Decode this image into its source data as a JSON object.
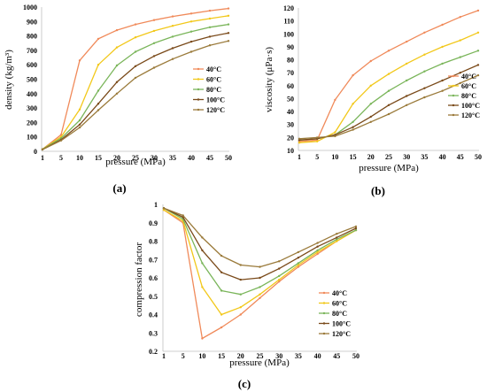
{
  "chart_data": [
    {
      "type": "line",
      "panel_label": "(a)",
      "xlabel": "pressure (MPa)",
      "ylabel": "density (kg/m³)",
      "x": [
        1,
        5,
        10,
        15,
        20,
        25,
        30,
        35,
        40,
        45,
        50
      ],
      "xticks": [
        "1",
        "5",
        "10",
        "15",
        "20",
        "25",
        "30",
        "35",
        "40",
        "45",
        "50"
      ],
      "ylim": [
        0,
        1000
      ],
      "yticks": [
        "0",
        "100",
        "200",
        "300",
        "400",
        "500",
        "600",
        "700",
        "800",
        "900",
        "1000"
      ],
      "grid": false,
      "legend_position": "right",
      "series": [
        {
          "name": "40°C",
          "color": "#F08A5A",
          "values": [
            15,
            115,
            630,
            780,
            840,
            880,
            910,
            935,
            955,
            975,
            990
          ]
        },
        {
          "name": "60°C",
          "color": "#F2C81A",
          "values": [
            15,
            100,
            290,
            600,
            720,
            790,
            835,
            870,
            900,
            920,
            940
          ]
        },
        {
          "name": "80°C",
          "color": "#7AB55A",
          "values": [
            14,
            90,
            215,
            420,
            595,
            690,
            750,
            795,
            830,
            860,
            880
          ]
        },
        {
          "name": "100°C",
          "color": "#7A4A1A",
          "values": [
            13,
            80,
            185,
            330,
            480,
            590,
            660,
            715,
            760,
            795,
            820
          ]
        },
        {
          "name": "120°C",
          "color": "#9A7A3A",
          "values": [
            12,
            75,
            165,
            285,
            400,
            510,
            580,
            640,
            690,
            735,
            765
          ]
        }
      ]
    },
    {
      "type": "line",
      "panel_label": "(b)",
      "xlabel": "pressure (MPa)",
      "ylabel": "viscosity (μPa·s)",
      "x": [
        1,
        5,
        10,
        15,
        20,
        25,
        30,
        35,
        40,
        45,
        50
      ],
      "xticks": [
        "1",
        "5",
        "10",
        "15",
        "20",
        "25",
        "30",
        "35",
        "40",
        "45",
        "50"
      ],
      "ylim": [
        10,
        120
      ],
      "yticks": [
        "10",
        "20",
        "30",
        "40",
        "50",
        "60",
        "70",
        "80",
        "90",
        "100",
        "110",
        "120"
      ],
      "grid": false,
      "legend_position": "right",
      "series": [
        {
          "name": "40°C",
          "color": "#F08A5A",
          "values": [
            17,
            18,
            49,
            68,
            79,
            87,
            94,
            101,
            107,
            113,
            118
          ]
        },
        {
          "name": "60°C",
          "color": "#F2C81A",
          "values": [
            16,
            17,
            24,
            46,
            60,
            69,
            77,
            84,
            90,
            95,
            101
          ]
        },
        {
          "name": "80°C",
          "color": "#7AB55A",
          "values": [
            18,
            19,
            22,
            32,
            46,
            56,
            64,
            71,
            77,
            82,
            87
          ]
        },
        {
          "name": "100°C",
          "color": "#7A4A1A",
          "values": [
            18,
            19,
            22,
            28,
            36,
            45,
            52,
            58,
            64,
            70,
            76
          ]
        },
        {
          "name": "120°C",
          "color": "#9A7A3A",
          "values": [
            19,
            20,
            21,
            26,
            32,
            38,
            45,
            51,
            56,
            62,
            68
          ]
        }
      ]
    },
    {
      "type": "line",
      "panel_label": "(c)",
      "xlabel": "pressure (MPa)",
      "ylabel": "compression factor",
      "x": [
        1,
        5,
        10,
        15,
        20,
        25,
        30,
        35,
        40,
        45,
        50
      ],
      "xticks": [
        "1",
        "5",
        "10",
        "15",
        "20",
        "25",
        "30",
        "35",
        "40",
        "45",
        "50"
      ],
      "ylim": [
        0.2,
        1
      ],
      "yticks": [
        "0.2",
        "0.3",
        "0.4",
        "0.5",
        "0.6",
        "0.7",
        "0.8",
        "0.9",
        "1"
      ],
      "grid": false,
      "legend_position": "right",
      "series": [
        {
          "name": "40°C",
          "color": "#F08A5A",
          "values": [
            0.97,
            0.9,
            0.27,
            0.33,
            0.4,
            0.49,
            0.58,
            0.66,
            0.73,
            0.8,
            0.86
          ]
        },
        {
          "name": "60°C",
          "color": "#F2C81A",
          "values": [
            0.97,
            0.91,
            0.55,
            0.4,
            0.44,
            0.51,
            0.59,
            0.67,
            0.74,
            0.8,
            0.86
          ]
        },
        {
          "name": "80°C",
          "color": "#7AB55A",
          "values": [
            0.98,
            0.92,
            0.68,
            0.53,
            0.51,
            0.55,
            0.61,
            0.68,
            0.75,
            0.81,
            0.86
          ]
        },
        {
          "name": "100°C",
          "color": "#7A4A1A",
          "values": [
            0.98,
            0.93,
            0.75,
            0.63,
            0.59,
            0.6,
            0.65,
            0.71,
            0.77,
            0.82,
            0.87
          ]
        },
        {
          "name": "120°C",
          "color": "#9A7A3A",
          "values": [
            0.98,
            0.94,
            0.82,
            0.72,
            0.67,
            0.66,
            0.69,
            0.74,
            0.79,
            0.84,
            0.88
          ]
        }
      ]
    }
  ]
}
